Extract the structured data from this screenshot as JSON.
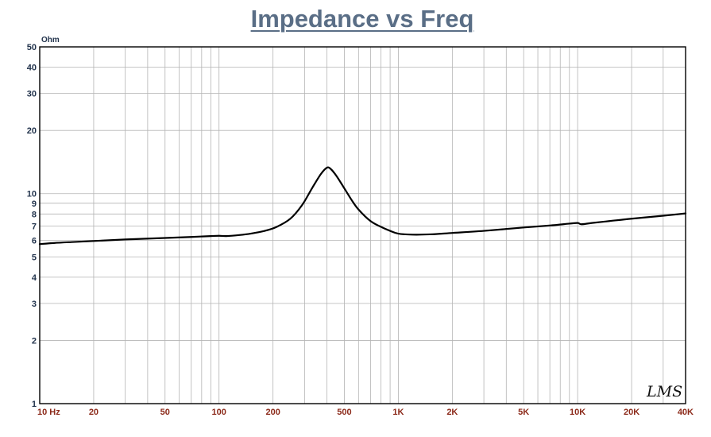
{
  "chart_data": {
    "type": "line",
    "title": "Impedance vs Freq",
    "ylabel": "Ohm",
    "xscale": "log",
    "yscale": "log",
    "xlim": [
      10,
      40000
    ],
    "ylim": [
      1,
      50
    ],
    "grid": true,
    "x_ticks": [
      {
        "value": 10,
        "label": "10  Hz"
      },
      {
        "value": 20,
        "label": "20"
      },
      {
        "value": 50,
        "label": "50"
      },
      {
        "value": 100,
        "label": "100"
      },
      {
        "value": 200,
        "label": "200"
      },
      {
        "value": 500,
        "label": "500"
      },
      {
        "value": 1000,
        "label": "1K"
      },
      {
        "value": 2000,
        "label": "2K"
      },
      {
        "value": 5000,
        "label": "5K"
      },
      {
        "value": 10000,
        "label": "10K"
      },
      {
        "value": 20000,
        "label": "20K"
      },
      {
        "value": 40000,
        "label": "40K"
      }
    ],
    "y_ticks": [
      {
        "value": 1,
        "label": "1"
      },
      {
        "value": 2,
        "label": "2"
      },
      {
        "value": 3,
        "label": "3"
      },
      {
        "value": 4,
        "label": "4"
      },
      {
        "value": 5,
        "label": "5"
      },
      {
        "value": 6,
        "label": "6"
      },
      {
        "value": 7,
        "label": "7"
      },
      {
        "value": 8,
        "label": "8"
      },
      {
        "value": 9,
        "label": "9"
      },
      {
        "value": 10,
        "label": "10"
      },
      {
        "value": 20,
        "label": "20"
      },
      {
        "value": 30,
        "label": "30"
      },
      {
        "value": 40,
        "label": "40"
      },
      {
        "value": 50,
        "label": "50"
      }
    ],
    "series": [
      {
        "color": "#000000",
        "x": [
          10,
          12,
          15,
          20,
          30,
          50,
          70,
          90,
          100,
          110,
          130,
          150,
          180,
          210,
          250,
          290,
          330,
          370,
          400,
          420,
          450,
          500,
          550,
          600,
          700,
          800,
          900,
          1000,
          1200,
          1500,
          2000,
          3000,
          5000,
          7000,
          9000,
          10000,
          10500,
          12000,
          15000,
          20000,
          30000,
          40000
        ],
        "y": [
          5.75,
          5.82,
          5.88,
          5.95,
          6.05,
          6.15,
          6.22,
          6.28,
          6.3,
          6.28,
          6.35,
          6.45,
          6.65,
          6.95,
          7.6,
          8.8,
          10.6,
          12.4,
          13.3,
          13.1,
          12.2,
          10.6,
          9.3,
          8.4,
          7.4,
          6.95,
          6.65,
          6.45,
          6.38,
          6.4,
          6.5,
          6.65,
          6.9,
          7.05,
          7.2,
          7.25,
          7.15,
          7.25,
          7.4,
          7.6,
          7.85,
          8.05
        ]
      }
    ]
  },
  "watermark": "LMS"
}
